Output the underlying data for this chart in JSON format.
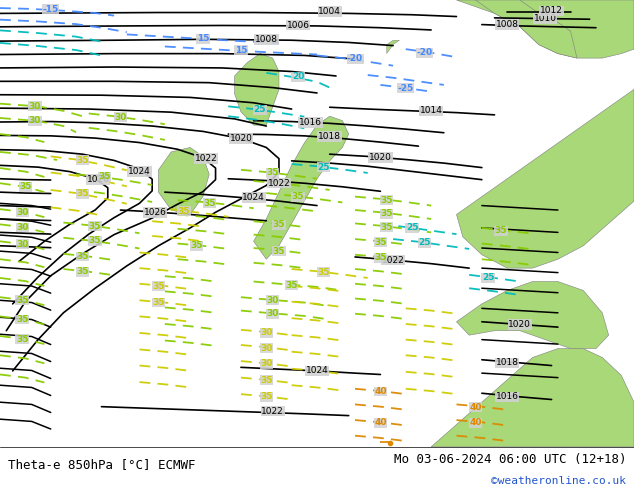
{
  "title_left": "Theta-e 850hPa [°C] ECMWF",
  "title_right": "Mo 03-06-2024 06:00 UTC (12+18)",
  "copyright": "©weatheronline.co.uk",
  "bg_color": "#d2d2d2",
  "land_green": "#a8d878",
  "land_light_green": "#c8eca0",
  "sea_color": "#d2d2d2",
  "figsize": [
    6.34,
    4.9
  ],
  "dpi": 100,
  "title_fontsize": 9.0,
  "copyright_color": "#2255cc",
  "copyright_fontsize": 8.0,
  "text_color": "#000000",
  "blue_color": "#4488ff",
  "cyan_color": "#00bbbb",
  "green_color": "#88cc00",
  "yellow_color": "#cccc00",
  "orange_color": "#dd8800"
}
